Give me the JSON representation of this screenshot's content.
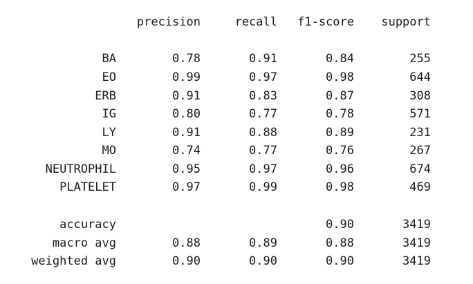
{
  "header": {
    "precision": "precision",
    "recall": "recall",
    "f1_score": "f1-score",
    "support": "support"
  },
  "rows": [
    {
      "label": "BA",
      "precision": "0.78",
      "recall": "0.91",
      "f1": "0.84",
      "support": "255"
    },
    {
      "label": "EO",
      "precision": "0.99",
      "recall": "0.97",
      "f1": "0.98",
      "support": "644"
    },
    {
      "label": "ERB",
      "precision": "0.91",
      "recall": "0.83",
      "f1": "0.87",
      "support": "308"
    },
    {
      "label": "IG",
      "precision": "0.80",
      "recall": "0.77",
      "f1": "0.78",
      "support": "571"
    },
    {
      "label": "LY",
      "precision": "0.91",
      "recall": "0.88",
      "f1": "0.89",
      "support": "231"
    },
    {
      "label": "MO",
      "precision": "0.74",
      "recall": "0.77",
      "f1": "0.76",
      "support": "267"
    },
    {
      "label": "NEUTROPHIL",
      "precision": "0.95",
      "recall": "0.97",
      "f1": "0.96",
      "support": "674"
    },
    {
      "label": "PLATELET",
      "precision": "0.97",
      "recall": "0.99",
      "f1": "0.98",
      "support": "469"
    }
  ],
  "summary": [
    {
      "label": "accuracy",
      "precision": "",
      "recall": "",
      "f1": "0.90",
      "support": "3419"
    },
    {
      "label": "macro avg",
      "precision": "0.88",
      "recall": "0.89",
      "f1": "0.88",
      "support": "3419"
    },
    {
      "label": "weighted avg",
      "precision": "0.90",
      "recall": "0.90",
      "f1": "0.90",
      "support": "3419"
    }
  ]
}
